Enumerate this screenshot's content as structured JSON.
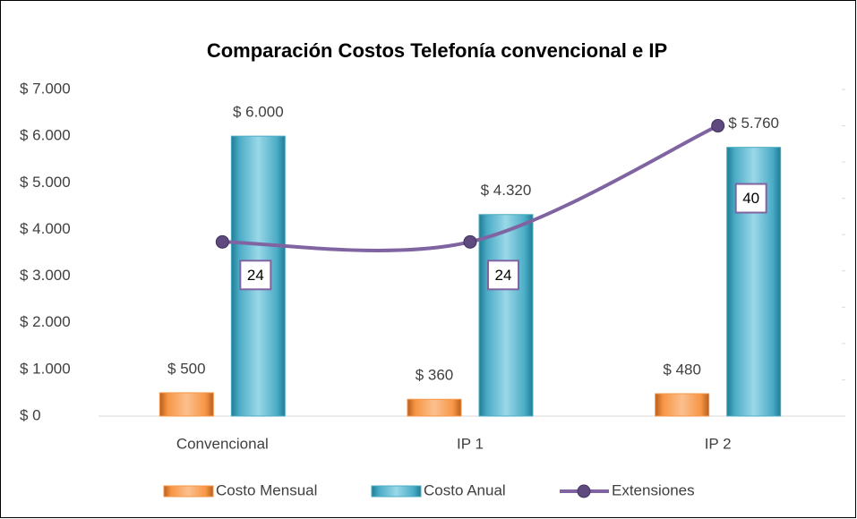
{
  "chart_data": {
    "type": "bar",
    "title": "Comparación Costos Telefonía convencional e IP",
    "categories": [
      "Convencional",
      "IP 1",
      "IP 2"
    ],
    "series": [
      {
        "name": "Costo Mensual",
        "type": "bar",
        "color": "#f79646",
        "values": [
          500,
          360,
          480
        ],
        "value_labels": [
          "$ 500",
          "$ 360",
          "$ 480"
        ]
      },
      {
        "name": "Costo Anual",
        "type": "bar",
        "color": "#4bacc6",
        "values": [
          6000,
          4320,
          5760
        ],
        "value_labels": [
          "$ 6.000",
          "$ 4.320",
          "$ 5.760"
        ]
      },
      {
        "name": "Extensiones",
        "type": "line",
        "axis": "y2",
        "color": "#8064a2",
        "values": [
          24,
          24,
          40
        ]
      }
    ],
    "ylim": [
      0,
      7000
    ],
    "yticks": [
      {
        "value": 0,
        "label": "$ 0"
      },
      {
        "value": 1000,
        "label": "$ 1.000"
      },
      {
        "value": 2000,
        "label": "$ 2.000"
      },
      {
        "value": 3000,
        "label": "$ 3.000"
      },
      {
        "value": 4000,
        "label": "$ 4.000"
      },
      {
        "value": 5000,
        "label": "$ 5.000"
      },
      {
        "value": 6000,
        "label": "$ 6.000"
      },
      {
        "value": 7000,
        "label": "$ 7.000"
      }
    ],
    "y2lim": [
      0,
      45
    ],
    "y2ticks": [
      0,
      5,
      10,
      15,
      20,
      25,
      30,
      35,
      40,
      45
    ],
    "legend": "bottom"
  }
}
